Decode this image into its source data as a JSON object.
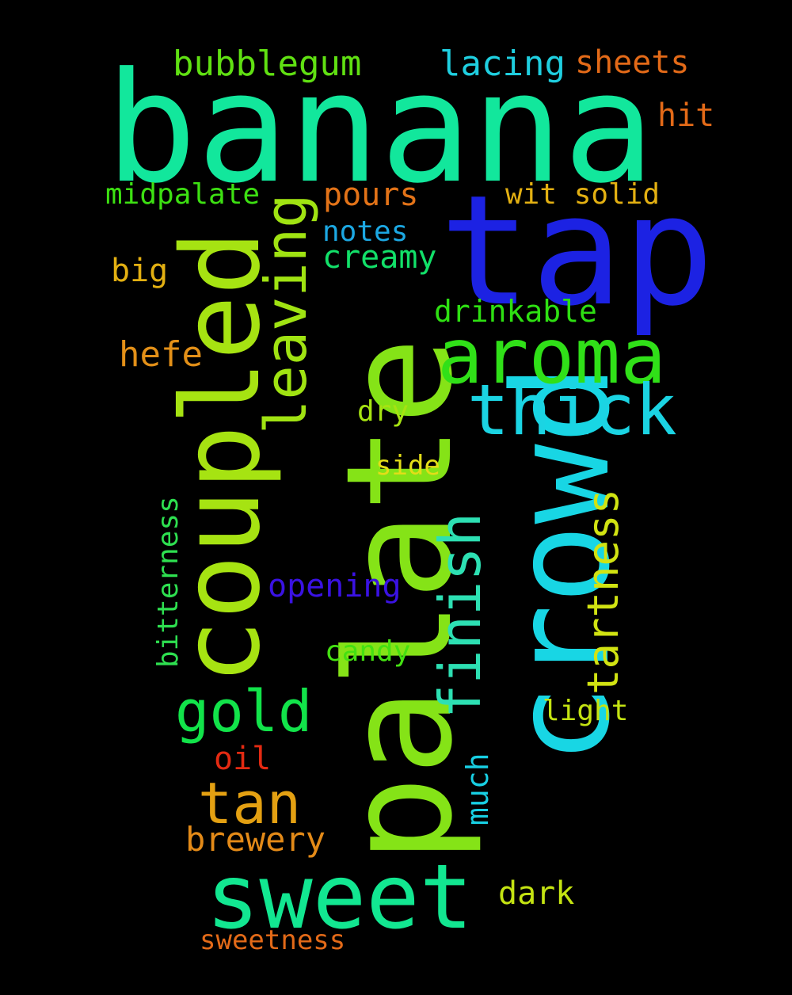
{
  "words": {
    "banana": {
      "text": "banana",
      "color": "#12e79c"
    },
    "tap": {
      "text": "tap",
      "color": "#1c22e3"
    },
    "palate": {
      "text": "palate",
      "color": "#85e317"
    },
    "crowd": {
      "text": "crowd",
      "color": "#18d6e4"
    },
    "coupled": {
      "text": "coupled",
      "color": "#a6e312"
    },
    "sweet": {
      "text": "sweet",
      "color": "#12e791"
    },
    "aroma": {
      "text": "aroma",
      "color": "#30e018"
    },
    "thick": {
      "text": "thick",
      "color": "#1bd4e3"
    },
    "leaving": {
      "text": "leaving",
      "color": "#a0e312"
    },
    "finish": {
      "text": "finish",
      "color": "#2de0b3"
    },
    "gold": {
      "text": "gold",
      "color": "#12e34a"
    },
    "tan": {
      "text": "tan",
      "color": "#e3a012"
    },
    "tartness": {
      "text": "tartness",
      "color": "#d1e312"
    },
    "bubblegum": {
      "text": "bubblegum",
      "color": "#60e012"
    },
    "lacing": {
      "text": "lacing",
      "color": "#1fcfe0"
    },
    "sheets": {
      "text": "sheets",
      "color": "#e36a18"
    },
    "hit": {
      "text": "hit",
      "color": "#e36a18"
    },
    "midpalate": {
      "text": "midpalate",
      "color": "#3de012"
    },
    "pours": {
      "text": "pours",
      "color": "#e37318"
    },
    "wit_solid": {
      "text": "wit solid",
      "color": "#e3b012"
    },
    "notes": {
      "text": "notes",
      "color": "#1ca8e3"
    },
    "creamy": {
      "text": "creamy",
      "color": "#12e069"
    },
    "big": {
      "text": "big",
      "color": "#e3b012"
    },
    "drinkable": {
      "text": "drinkable",
      "color": "#2ee012"
    },
    "hefe": {
      "text": "hefe",
      "color": "#e39018"
    },
    "dry": {
      "text": "dry",
      "color": "#a6e312"
    },
    "side": {
      "text": "side",
      "color": "#e3dd18"
    },
    "bitterness": {
      "text": "bitterness",
      "color": "#2ee050"
    },
    "opening": {
      "text": "opening",
      "color": "#3a12e3"
    },
    "candy": {
      "text": "candy",
      "color": "#44e012"
    },
    "light": {
      "text": "light",
      "color": "#c4e312"
    },
    "oil": {
      "text": "oil",
      "color": "#e32a12"
    },
    "much": {
      "text": "much",
      "color": "#18cfe3"
    },
    "brewery": {
      "text": "brewery",
      "color": "#e38a18"
    },
    "dark": {
      "text": "dark",
      "color": "#c4e312"
    },
    "sweetness": {
      "text": "sweetness",
      "color": "#e36a18"
    }
  }
}
